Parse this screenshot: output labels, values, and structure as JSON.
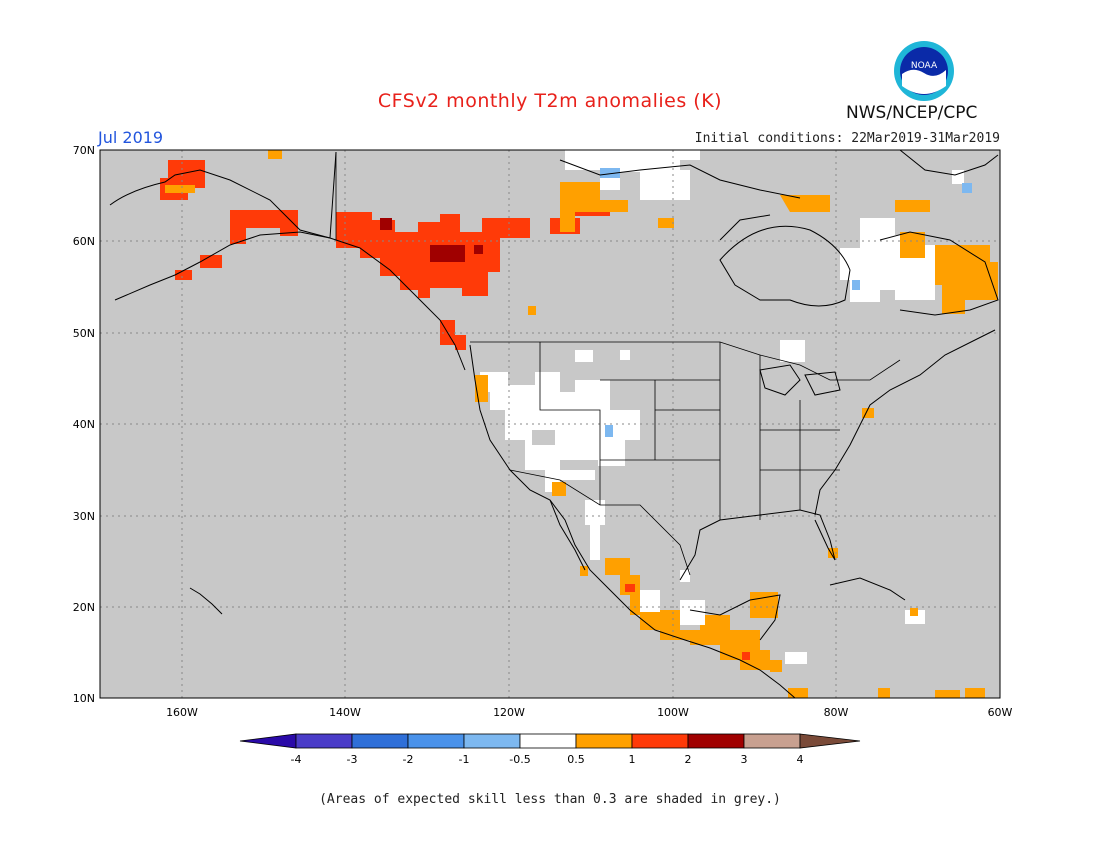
{
  "header": {
    "title": "CFSv2 monthly T2m anomalies (K)",
    "month": "Jul 2019",
    "initial_conditions": "Initial conditions: 22Mar2019-31Mar2019",
    "agency": "NWS/NCEP/CPC",
    "logo_text": "NOAA"
  },
  "axes": {
    "lat_labels": [
      "70N",
      "60N",
      "50N",
      "40N",
      "30N",
      "20N",
      "10N"
    ],
    "lon_labels": [
      "160W",
      "140W",
      "120W",
      "100W",
      "80W",
      "60W"
    ]
  },
  "colorbar": {
    "labels": [
      "-4",
      "-3",
      "-2",
      "-1",
      "-0.5",
      "0.5",
      "1",
      "2",
      "3",
      "4"
    ],
    "colors": [
      "#2a0aa8",
      "#4a3cc8",
      "#2f6fd8",
      "#4a92ea",
      "#7db8f0",
      "#ffffff",
      "#ffa000",
      "#ff3a08",
      "#a00000",
      "#c8a090",
      "#7a4a38"
    ]
  },
  "map": {
    "background": "#c8c8c8",
    "region": "North America",
    "lat_range": [
      10,
      70
    ],
    "lon_range": [
      -170,
      -60
    ]
  },
  "footer": {
    "note": "(Areas of expected skill less than 0.3 are shaded in grey.)"
  }
}
